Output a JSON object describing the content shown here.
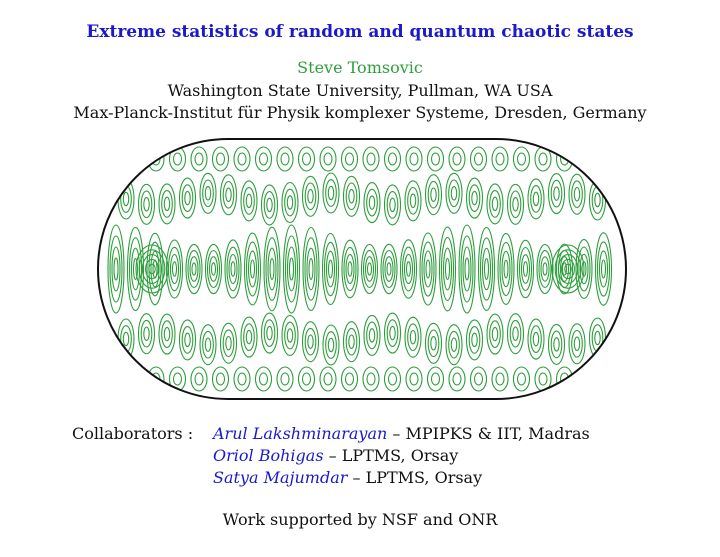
{
  "title": "Extreme statistics of random and quantum chaotic states",
  "author": "Steve Tomsovic",
  "affiliations": [
    "Washington State University, Pullman, WA USA",
    "Max-Planck-Institut für Physik komplexer Systeme, Dresden, Germany"
  ],
  "collaborators_label": "Collaborators :",
  "collaborators": [
    {
      "name": "Arul Lakshminarayan",
      "sep": " – ",
      "affiliation": "MPIPKS & IIT, Madras"
    },
    {
      "name": "Oriol Bohigas",
      "sep": " – ",
      "affiliation": "LPTMS, Orsay"
    },
    {
      "name": "Satya Majumdar",
      "sep": " – ",
      "affiliation": "LPTMS, Orsay"
    }
  ],
  "support": "Work supported by NSF and ONR",
  "colors": {
    "title": "#1a1acc",
    "author": "#2e9e3c",
    "contour": "#2e9e3c",
    "boundary": "#111111"
  },
  "figure_icon": "stadium-billiard-eigenstate-contour-plot"
}
